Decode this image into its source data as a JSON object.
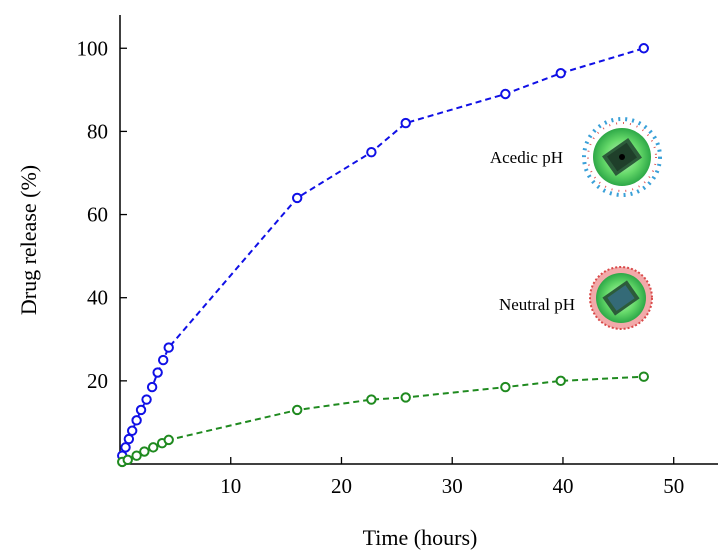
{
  "chart_data": {
    "type": "scatter",
    "title": "",
    "xlabel": "Time (hours)",
    "ylabel": "Drug release (%)",
    "xlim": [
      0,
      54
    ],
    "ylim": [
      0,
      108
    ],
    "xticks": [
      10,
      20,
      30,
      40,
      50
    ],
    "yticks": [
      20,
      40,
      60,
      80,
      100
    ],
    "grid": false,
    "series": [
      {
        "color": "#1010e6",
        "marker": "open-circle",
        "line": "dashed",
        "x": [
          0.2,
          0.5,
          0.8,
          1.1,
          1.5,
          1.9,
          2.4,
          2.9,
          3.4,
          3.9,
          4.4,
          16,
          22.7,
          25.8,
          34.8,
          39.8,
          47.3
        ],
        "y": [
          2,
          4,
          6,
          8,
          10.5,
          13,
          15.5,
          18.5,
          22,
          25,
          28,
          64,
          75,
          82,
          89,
          94,
          100
        ]
      },
      {
        "color": "#1f8a1f",
        "marker": "open-circle",
        "line": "dashed",
        "x": [
          0.2,
          0.7,
          1.5,
          2.2,
          3.0,
          3.8,
          4.4,
          16,
          22.7,
          25.8,
          34.8,
          39.8,
          47.3
        ],
        "y": [
          0.5,
          1,
          2,
          3,
          4,
          5,
          5.8,
          13,
          15.5,
          16,
          18.5,
          20,
          21
        ]
      }
    ],
    "annotations": [
      {
        "text": "Acedic pH",
        "icon": "acidic-nanoparticle-icon"
      },
      {
        "text": "Neutral pH",
        "icon": "neutral-nanoparticle-icon"
      }
    ]
  }
}
